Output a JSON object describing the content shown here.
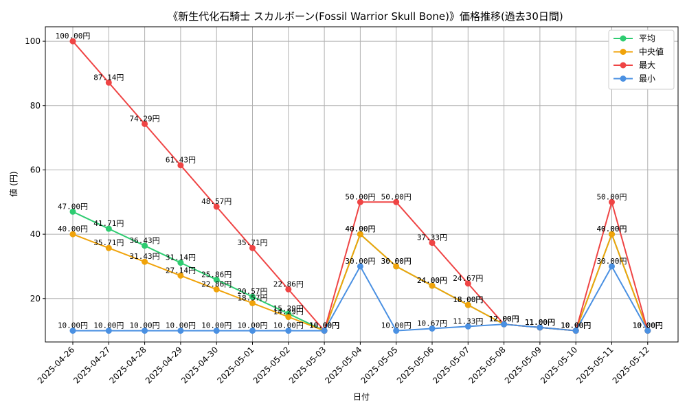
{
  "chart_data": {
    "type": "line",
    "title": "《新生代化石騎士 スカルボーン(Fossil Warrior Skull Bone)》価格推移(過去30日間)",
    "xlabel": "日付",
    "ylabel": "値 (円)",
    "ylim": [
      6.5,
      104.5
    ],
    "yticks": [
      20,
      40,
      60,
      80,
      100
    ],
    "grid": true,
    "legend_position": "top-right",
    "categories": [
      "2025-04-26",
      "2025-04-27",
      "2025-04-28",
      "2025-04-29",
      "2025-04-30",
      "2025-05-01",
      "2025-05-02",
      "2025-05-03",
      "2025-05-04",
      "2025-05-05",
      "2025-05-06",
      "2025-05-07",
      "2025-05-08",
      "2025-05-09",
      "2025-05-10",
      "2025-05-11",
      "2025-05-12"
    ],
    "series": [
      {
        "name": "平均",
        "color": "#2ecc71",
        "values": [
          47.0,
          41.71,
          36.43,
          31.14,
          25.86,
          20.57,
          15.29,
          10.0,
          40.0,
          30.0,
          24.0,
          18.0,
          12.0,
          11.0,
          10.0,
          40.0,
          10.0
        ]
      },
      {
        "name": "中央値",
        "color": "#f0a30a",
        "values": [
          40.0,
          35.71,
          31.43,
          27.14,
          22.86,
          18.57,
          14.29,
          10.0,
          40.0,
          30.0,
          24.0,
          18.0,
          12.0,
          11.0,
          10.0,
          40.0,
          10.0
        ]
      },
      {
        "name": "最大",
        "color": "#ef4444",
        "values": [
          100.0,
          87.14,
          74.29,
          61.43,
          48.57,
          35.71,
          22.86,
          10.0,
          50.0,
          50.0,
          37.33,
          24.67,
          12.0,
          11.0,
          10.0,
          50.0,
          10.0
        ]
      },
      {
        "name": "最小",
        "color": "#4a90e2",
        "values": [
          10.0,
          10.0,
          10.0,
          10.0,
          10.0,
          10.0,
          10.0,
          10.0,
          30.0,
          10.0,
          10.67,
          11.33,
          12.0,
          11.0,
          10.0,
          30.0,
          10.0
        ]
      }
    ],
    "label_suffix": "円"
  }
}
